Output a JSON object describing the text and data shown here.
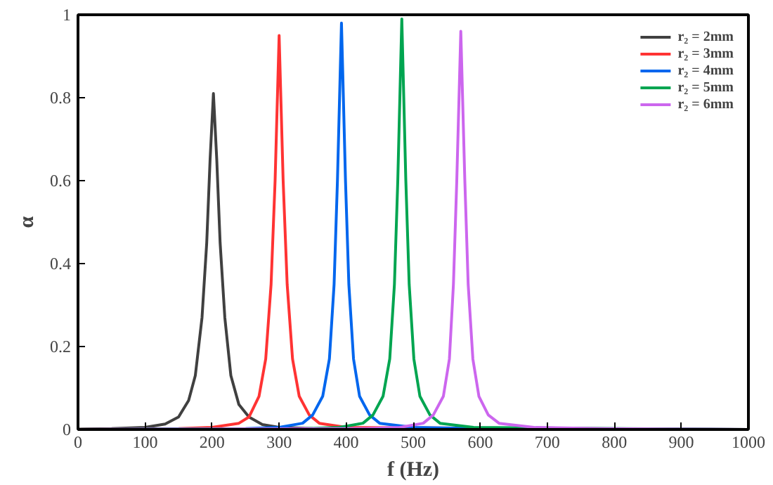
{
  "chart_data": {
    "type": "line",
    "xlabel": "f (Hz)",
    "ylabel": "α",
    "xlim": [
      0,
      1000
    ],
    "ylim": [
      0,
      1
    ],
    "xticks": [
      0,
      100,
      200,
      300,
      400,
      500,
      600,
      700,
      800,
      900,
      1000
    ],
    "yticks": [
      0,
      0.2,
      0.4,
      0.6,
      0.8,
      1
    ],
    "grid": false,
    "legend": "top right",
    "marker": "none",
    "line_style": "solid",
    "series": [
      {
        "name": "r₂ = 2mm",
        "color": "#404040",
        "x": [
          0,
          50,
          100,
          130,
          150,
          165,
          175,
          185,
          192,
          197,
          202,
          207,
          212,
          219,
          228,
          240,
          255,
          275,
          300,
          350,
          400,
          1000
        ],
        "values": [
          0.001,
          0.002,
          0.005,
          0.013,
          0.03,
          0.07,
          0.13,
          0.27,
          0.45,
          0.65,
          0.81,
          0.65,
          0.45,
          0.27,
          0.13,
          0.06,
          0.03,
          0.012,
          0.005,
          0.002,
          0.001,
          0
        ]
      },
      {
        "name": "r₂ = 3mm",
        "color": "#ff3333",
        "x": [
          0,
          150,
          200,
          240,
          255,
          270,
          280,
          288,
          294,
          300,
          306,
          312,
          320,
          330,
          345,
          360,
          400,
          1000
        ],
        "values": [
          0,
          0.002,
          0.005,
          0.015,
          0.03,
          0.08,
          0.17,
          0.35,
          0.6,
          0.95,
          0.6,
          0.35,
          0.17,
          0.08,
          0.035,
          0.015,
          0.005,
          0
        ]
      },
      {
        "name": "r₂ = 4mm",
        "color": "#0066ee",
        "x": [
          0,
          250,
          300,
          335,
          350,
          365,
          375,
          382,
          387,
          393,
          399,
          404,
          411,
          420,
          435,
          450,
          500,
          600,
          1000
        ],
        "values": [
          0,
          0.002,
          0.005,
          0.015,
          0.035,
          0.08,
          0.17,
          0.35,
          0.6,
          0.98,
          0.6,
          0.35,
          0.17,
          0.08,
          0.035,
          0.015,
          0.005,
          0.002,
          0
        ]
      },
      {
        "name": "r₂ = 5mm",
        "color": "#00a550",
        "x": [
          0,
          340,
          390,
          425,
          440,
          455,
          465,
          472,
          477,
          483,
          489,
          494,
          501,
          510,
          525,
          540,
          590,
          1000
        ],
        "values": [
          0,
          0.002,
          0.005,
          0.015,
          0.035,
          0.08,
          0.17,
          0.35,
          0.6,
          0.99,
          0.6,
          0.35,
          0.17,
          0.08,
          0.035,
          0.015,
          0.005,
          0
        ]
      },
      {
        "name": "r₂ = 6mm",
        "color": "#cc66ee",
        "x": [
          0,
          430,
          480,
          515,
          530,
          545,
          554,
          560,
          565,
          571,
          577,
          582,
          589,
          598,
          612,
          628,
          680,
          780,
          1000
        ],
        "values": [
          0,
          0.002,
          0.005,
          0.015,
          0.035,
          0.08,
          0.17,
          0.35,
          0.6,
          0.96,
          0.6,
          0.35,
          0.17,
          0.08,
          0.035,
          0.015,
          0.005,
          0.002,
          0
        ]
      }
    ]
  }
}
